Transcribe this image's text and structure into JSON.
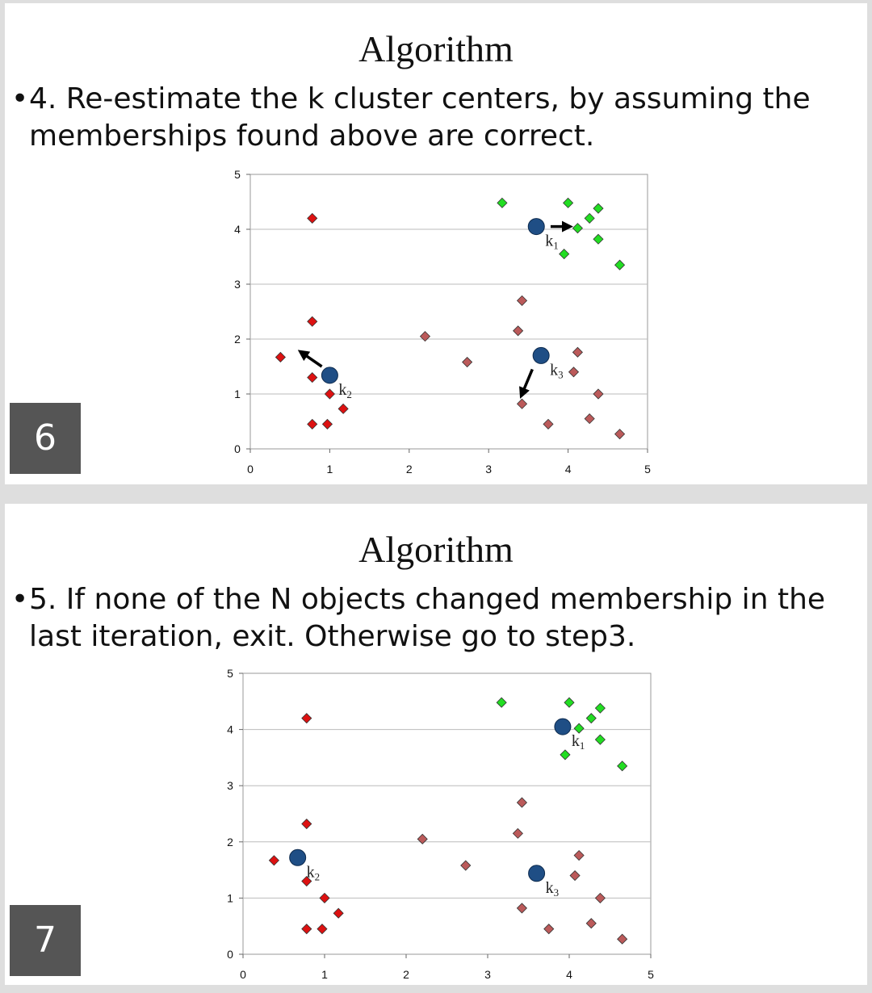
{
  "slides": [
    {
      "number": "6",
      "title": "Algorithm",
      "bullet": "4. Re-estimate the k cluster centers, by assuming the\nmemberships found above are correct."
    },
    {
      "number": "7",
      "title": "Algorithm",
      "bullet": "5. If none of the N objects changed membership in the\nlast iteration, exit. Otherwise go to step3."
    }
  ],
  "colors": {
    "green_points": "#22dd22",
    "red_points": "#dd1111",
    "brown_points": "#bb5a5a",
    "centroid": "#1f4e85",
    "grid": "#bbbbbb",
    "slide_number_bg": "#555555"
  },
  "chart_data": [
    {
      "type": "scatter",
      "xlim": [
        0,
        5
      ],
      "ylim": [
        0,
        5
      ],
      "xticks": [
        "0",
        "1",
        "2",
        "3",
        "4",
        "5"
      ],
      "yticks": [
        "0",
        "1",
        "2",
        "3",
        "4",
        "5"
      ],
      "grid": "horizontal",
      "series": [
        {
          "color": "green",
          "points": [
            [
              3.17,
              4.48
            ],
            [
              4.0,
              4.48
            ],
            [
              4.38,
              4.38
            ],
            [
              4.27,
              4.2
            ],
            [
              4.12,
              4.02
            ],
            [
              4.38,
              3.82
            ],
            [
              3.95,
              3.55
            ],
            [
              4.65,
              3.35
            ]
          ]
        },
        {
          "color": "red",
          "points": [
            [
              0.78,
              4.2
            ],
            [
              0.78,
              2.32
            ],
            [
              0.38,
              1.67
            ],
            [
              0.78,
              1.3
            ],
            [
              1.0,
              1.0
            ],
            [
              1.17,
              0.73
            ],
            [
              0.78,
              0.45
            ],
            [
              0.97,
              0.45
            ]
          ]
        },
        {
          "color": "brown",
          "points": [
            [
              3.42,
              2.7
            ],
            [
              3.37,
              2.15
            ],
            [
              2.2,
              2.05
            ],
            [
              2.73,
              1.58
            ],
            [
              4.12,
              1.76
            ],
            [
              4.07,
              1.4
            ],
            [
              4.38,
              1.0
            ],
            [
              3.42,
              0.82
            ],
            [
              3.75,
              0.45
            ],
            [
              4.27,
              0.55
            ],
            [
              4.65,
              0.27
            ]
          ]
        }
      ],
      "centroids": [
        {
          "label": "k",
          "sub": "1",
          "x": 3.6,
          "y": 4.05
        },
        {
          "label": "k",
          "sub": "2",
          "x": 1.0,
          "y": 1.34
        },
        {
          "label": "k",
          "sub": "3",
          "x": 3.66,
          "y": 1.7
        }
      ],
      "arrows": [
        {
          "from": [
            3.78,
            4.05
          ],
          "to": [
            4.0,
            4.05
          ]
        },
        {
          "from": [
            0.9,
            1.5
          ],
          "to": [
            0.65,
            1.75
          ]
        },
        {
          "from": [
            3.55,
            1.45
          ],
          "to": [
            3.42,
            1.0
          ]
        }
      ]
    },
    {
      "type": "scatter",
      "xlim": [
        0,
        5
      ],
      "ylim": [
        0,
        5
      ],
      "xticks": [
        "0",
        "1",
        "2",
        "3",
        "4",
        "5"
      ],
      "yticks": [
        "0",
        "1",
        "2",
        "3",
        "4",
        "5"
      ],
      "grid": "horizontal",
      "series": [
        {
          "color": "green",
          "points": [
            [
              3.17,
              4.48
            ],
            [
              4.0,
              4.48
            ],
            [
              4.38,
              4.38
            ],
            [
              4.27,
              4.2
            ],
            [
              4.12,
              4.02
            ],
            [
              4.38,
              3.82
            ],
            [
              3.95,
              3.55
            ],
            [
              4.65,
              3.35
            ]
          ]
        },
        {
          "color": "red",
          "points": [
            [
              0.78,
              4.2
            ],
            [
              0.78,
              2.32
            ],
            [
              0.38,
              1.67
            ],
            [
              0.78,
              1.3
            ],
            [
              1.0,
              1.0
            ],
            [
              1.17,
              0.73
            ],
            [
              0.78,
              0.45
            ],
            [
              0.97,
              0.45
            ]
          ]
        },
        {
          "color": "brown",
          "points": [
            [
              3.42,
              2.7
            ],
            [
              3.37,
              2.15
            ],
            [
              2.2,
              2.05
            ],
            [
              2.73,
              1.58
            ],
            [
              4.12,
              1.76
            ],
            [
              4.07,
              1.4
            ],
            [
              4.38,
              1.0
            ],
            [
              3.42,
              0.82
            ],
            [
              3.75,
              0.45
            ],
            [
              4.27,
              0.55
            ],
            [
              4.65,
              0.27
            ]
          ]
        }
      ],
      "centroids": [
        {
          "label": "k",
          "sub": "1",
          "x": 3.92,
          "y": 4.05
        },
        {
          "label": "k",
          "sub": "2",
          "x": 0.67,
          "y": 1.72
        },
        {
          "label": "k",
          "sub": "3",
          "x": 3.6,
          "y": 1.44
        }
      ],
      "arrows": []
    }
  ]
}
